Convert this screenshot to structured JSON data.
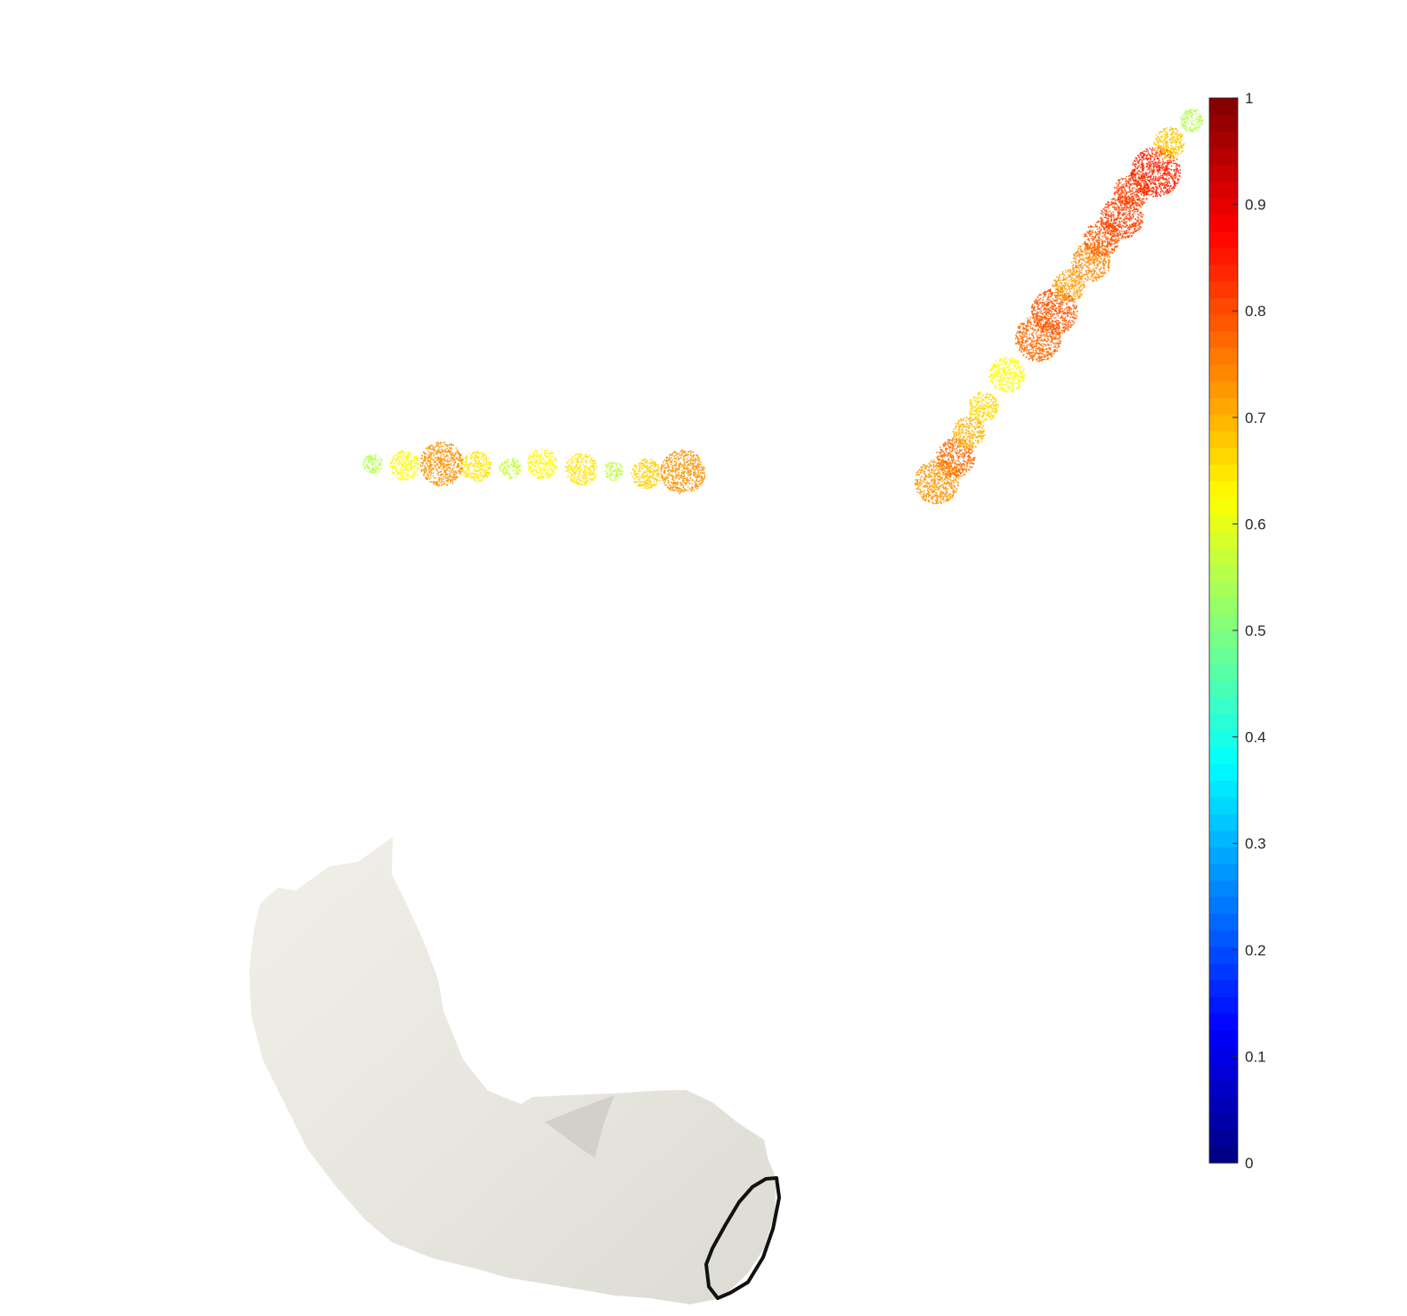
{
  "chart_data": {
    "type": "scatter",
    "title": "",
    "xlabel": "",
    "ylabel": "",
    "colormap": "jet",
    "colorbar": {
      "location": "right",
      "range": [
        0,
        1
      ],
      "ticks": [
        "0",
        "0.1",
        "0.2",
        "0.3",
        "0.4",
        "0.5",
        "0.6",
        "0.7",
        "0.8",
        "0.9",
        "1"
      ],
      "levels": 64
    },
    "series": [
      {
        "values": [
          0.55,
          0.63,
          0.73,
          0.65,
          0.57,
          0.63,
          0.65,
          0.56,
          0.67,
          0.73
        ]
      },
      {
        "values": [
          0.73,
          0.77,
          0.7,
          0.66,
          0.62,
          0.77,
          0.79,
          0.72,
          0.74,
          0.79,
          0.81,
          0.81,
          0.84,
          0.68,
          0.55
        ]
      }
    ],
    "mesh": {
      "surface_color": "#e8e6de",
      "outline_color": "#111111"
    }
  }
}
